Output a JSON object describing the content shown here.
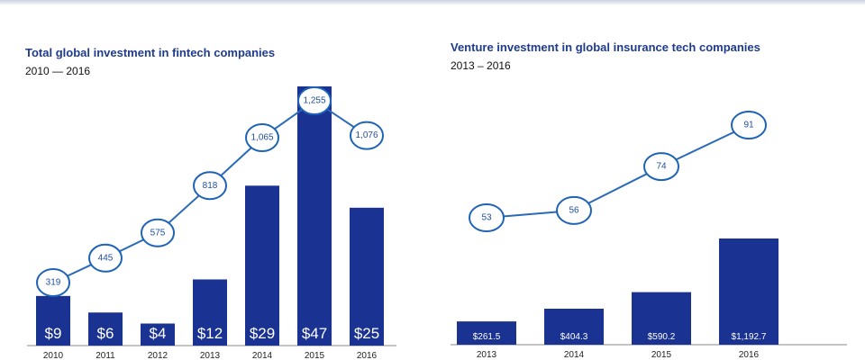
{
  "chart_data": [
    {
      "type": "bar",
      "title": "Total global investment in fintech companies",
      "subtitle": "2010 — 2016",
      "categories": [
        "2010",
        "2011",
        "2012",
        "2013",
        "2014",
        "2015",
        "2016"
      ],
      "series": [
        {
          "kind": "bar",
          "values": [
            9,
            6,
            4,
            12,
            29,
            47,
            25
          ],
          "labels": [
            "$9",
            "$6",
            "$4",
            "$12",
            "$29",
            "$47",
            "$25"
          ]
        },
        {
          "kind": "line",
          "values": [
            319,
            445,
            575,
            818,
            1065,
            1255,
            1076
          ],
          "labels": [
            "319",
            "445",
            "575",
            "818",
            "1,065",
            "1,255",
            "1,076"
          ]
        }
      ],
      "grid": false,
      "legend": "none",
      "colors": {
        "bar": "#1a3291",
        "line": "#2a6ab8",
        "marker_text": "#1f4e9e"
      }
    },
    {
      "type": "bar",
      "title": "Venture investment in global insurance tech companies",
      "subtitle": "2013 – 2016",
      "categories": [
        "2013",
        "2014",
        "2015",
        "2016"
      ],
      "series": [
        {
          "kind": "bar",
          "values": [
            261.5,
            404.3,
            590.2,
            1192.7
          ],
          "labels": [
            "$261.5",
            "$404.3",
            "$590.2",
            "$1,192.7"
          ]
        },
        {
          "kind": "line",
          "values": [
            53,
            56,
            74,
            91
          ],
          "labels": [
            "53",
            "56",
            "74",
            "91"
          ]
        }
      ],
      "grid": false,
      "legend": "none",
      "colors": {
        "bar": "#1a3291",
        "line": "#2a6ab8",
        "marker_text": "#1f4e9e"
      }
    }
  ]
}
